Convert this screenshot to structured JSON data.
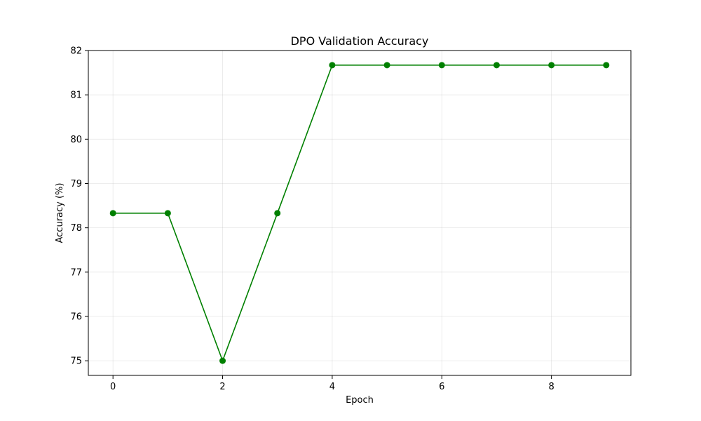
{
  "chart_data": {
    "type": "line",
    "title": "DPO Validation Accuracy",
    "xlabel": "Epoch",
    "ylabel": "Accuracy (%)",
    "x": [
      0,
      1,
      2,
      3,
      4,
      5,
      6,
      7,
      8,
      9
    ],
    "series": [
      {
        "values": [
          78.33,
          78.33,
          75.0,
          78.33,
          81.67,
          81.67,
          81.67,
          81.67,
          81.67,
          81.67
        ],
        "color": "#008000",
        "marker": "circle"
      }
    ],
    "xlim": [
      -0.45,
      9.45
    ],
    "ylim": [
      74.67,
      82.0
    ],
    "xticks": [
      0,
      2,
      4,
      6,
      8
    ],
    "yticks": [
      75,
      76,
      77,
      78,
      79,
      80,
      81,
      82
    ],
    "grid": true
  }
}
